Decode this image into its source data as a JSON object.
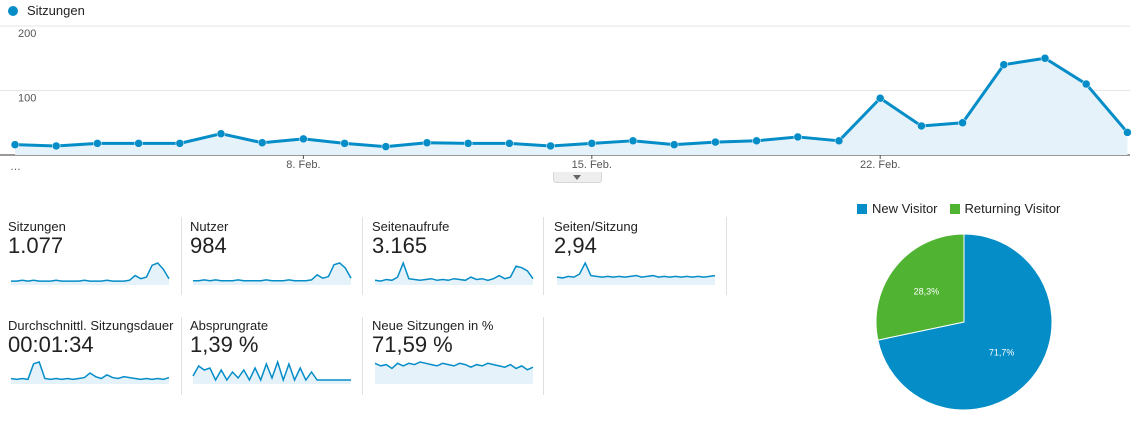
{
  "legend": {
    "label": "Sitzungen",
    "color": "#058dc7"
  },
  "chart_data": [
    {
      "type": "area",
      "series": [
        {
          "name": "Sitzungen",
          "color": "#058dc7",
          "values": [
            16,
            14,
            18,
            18,
            18,
            33,
            19,
            25,
            18,
            13,
            19,
            18,
            18,
            14,
            18,
            22,
            16,
            20,
            22,
            28,
            22,
            88,
            45,
            50,
            140,
            150,
            110,
            35
          ]
        }
      ],
      "x_tick_labels": [
        {
          "index": 7,
          "label": "8. Feb."
        },
        {
          "index": 14,
          "label": "15. Feb."
        },
        {
          "index": 21,
          "label": "22. Feb."
        }
      ],
      "x_start_label": "…",
      "y_ticks": [
        100,
        200
      ],
      "ylim": [
        0,
        200
      ],
      "grid": true
    },
    {
      "type": "pie",
      "slices": [
        {
          "label": "New Visitor",
          "value": 71.7,
          "value_label": "71,7%",
          "color": "#058dc7"
        },
        {
          "label": "Returning Visitor",
          "value": 28.3,
          "value_label": "28,3%",
          "color": "#50b432"
        }
      ]
    }
  ],
  "metrics": [
    {
      "label": "Sitzungen",
      "value": "1.077",
      "spark": [
        5,
        5,
        6,
        5,
        6,
        5,
        5,
        5,
        6,
        5,
        5,
        5,
        5,
        6,
        5,
        5,
        5,
        6,
        5,
        5,
        5,
        6,
        12,
        8,
        10,
        25,
        28,
        20,
        8
      ]
    },
    {
      "label": "Nutzer",
      "value": "984",
      "spark": [
        5,
        5,
        6,
        5,
        6,
        5,
        5,
        5,
        6,
        5,
        5,
        5,
        5,
        6,
        5,
        5,
        5,
        6,
        5,
        5,
        5,
        6,
        12,
        8,
        10,
        24,
        26,
        20,
        8
      ]
    },
    {
      "label": "Seitenaufrufe",
      "value": "3.165",
      "spark": [
        6,
        5,
        7,
        6,
        10,
        28,
        8,
        7,
        6,
        7,
        8,
        6,
        7,
        6,
        8,
        7,
        6,
        10,
        7,
        8,
        6,
        8,
        12,
        8,
        10,
        24,
        22,
        18,
        8
      ]
    },
    {
      "label": "Seiten/Sitzung",
      "value": "2,94",
      "spark": [
        10,
        9,
        11,
        10,
        14,
        28,
        12,
        11,
        10,
        11,
        10,
        11,
        10,
        11,
        12,
        10,
        11,
        12,
        10,
        11,
        10,
        11,
        10,
        11,
        10,
        11,
        10,
        11,
        12
      ]
    },
    {
      "label": "Durchschnittl. Sitzungsdauer",
      "value": "00:01:34",
      "spark": [
        6,
        5,
        6,
        5,
        22,
        24,
        6,
        5,
        6,
        5,
        6,
        5,
        6,
        7,
        12,
        8,
        6,
        10,
        7,
        6,
        8,
        7,
        6,
        5,
        6,
        5,
        6,
        5,
        7
      ]
    },
    {
      "label": "Absprungrate",
      "value": "1,39 %",
      "spark": [
        8,
        18,
        14,
        16,
        4,
        14,
        4,
        12,
        6,
        14,
        4,
        16,
        4,
        20,
        6,
        22,
        4,
        20,
        4,
        16,
        4,
        12,
        4,
        4,
        4,
        4,
        4,
        4,
        4
      ]
    },
    {
      "label": "Neue Sitzungen in %",
      "value": "71,59 %",
      "spark": [
        16,
        14,
        15,
        12,
        16,
        14,
        16,
        15,
        17,
        16,
        15,
        14,
        16,
        15,
        14,
        16,
        15,
        13,
        15,
        14,
        16,
        15,
        14,
        13,
        15,
        12,
        14,
        11,
        13
      ]
    }
  ]
}
